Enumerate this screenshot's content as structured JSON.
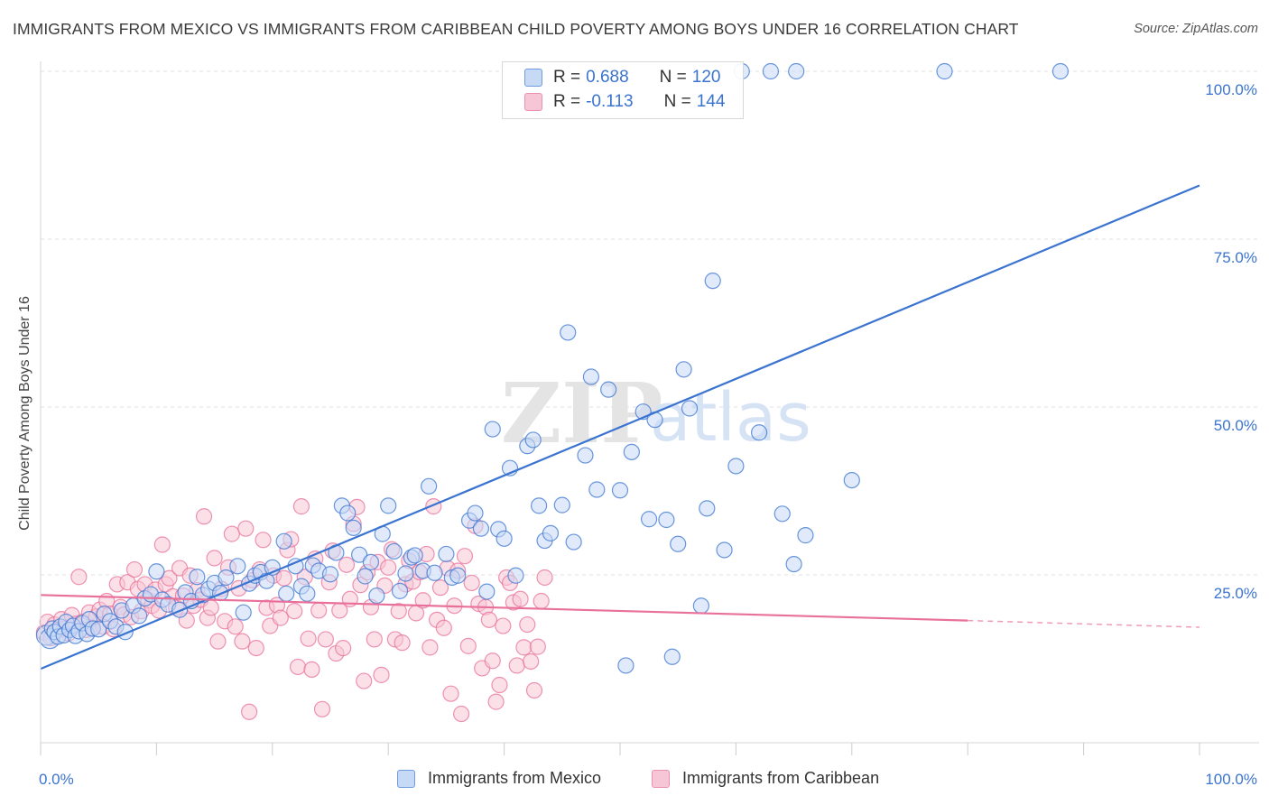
{
  "title": "IMMIGRANTS FROM MEXICO VS IMMIGRANTS FROM CARIBBEAN CHILD POVERTY AMONG BOYS UNDER 16 CORRELATION CHART",
  "source": "Source: ZipAtlas.com",
  "watermark": {
    "zip": "ZIP",
    "atlas": "atlas"
  },
  "colors": {
    "blue": "#3a74d0",
    "blue_fill": "#c6d9f5",
    "pink": "#e8709a",
    "pink_fill": "#f7c6d6",
    "grid": "#e0e0e0"
  },
  "legend_top": {
    "series": [
      {
        "r_label": "R =",
        "r_value": "0.688",
        "n_label": "N =",
        "n_value": "120"
      },
      {
        "r_label": "R =",
        "r_value": "-0.113",
        "n_label": "N =",
        "n_value": "144"
      }
    ]
  },
  "chart_data": {
    "type": "scatter",
    "title": "IMMIGRANTS FROM MEXICO VS IMMIGRANTS FROM CARIBBEAN CHILD POVERTY AMONG BOYS UNDER 16 CORRELATION CHART",
    "xlabel": "",
    "ylabel": "Child Poverty Among Boys Under 16",
    "xlim": [
      0,
      100
    ],
    "ylim": [
      0,
      100
    ],
    "x_tick_labels": [
      "0.0%",
      "100.0%"
    ],
    "y_tick_labels": [
      {
        "value": 25,
        "label": "25.0%"
      },
      {
        "value": 50,
        "label": "50.0%"
      },
      {
        "value": 75,
        "label": "75.0%"
      },
      {
        "value": 100,
        "label": "100.0%"
      }
    ],
    "grid": true,
    "legend_position": "bottom",
    "series": [
      {
        "name": "Immigrants from Mexico",
        "color": "#3a74d0",
        "trend": {
          "x": [
            0,
            100
          ],
          "y": [
            11,
            83
          ]
        },
        "points": [
          [
            0.5,
            16
          ],
          [
            0.8,
            15.5
          ],
          [
            1,
            17
          ],
          [
            1.2,
            16.5
          ],
          [
            1.5,
            15.8
          ],
          [
            1.7,
            17.3
          ],
          [
            2,
            16
          ],
          [
            2.2,
            18
          ],
          [
            2.5,
            16.8
          ],
          [
            2.8,
            17.4
          ],
          [
            3,
            15.9
          ],
          [
            3.3,
            16.6
          ],
          [
            3.6,
            17.8
          ],
          [
            4,
            16.2
          ],
          [
            4.2,
            18.4
          ],
          [
            4.5,
            17
          ],
          [
            5,
            16.9
          ],
          [
            5.5,
            19.2
          ],
          [
            6,
            18.1
          ],
          [
            6.5,
            17.3
          ],
          [
            7,
            19.7
          ],
          [
            7.3,
            16.5
          ],
          [
            8,
            20.4
          ],
          [
            8.5,
            18.9
          ],
          [
            9,
            21.5
          ],
          [
            9.5,
            22.1
          ],
          [
            10,
            25.5
          ],
          [
            10.5,
            21.3
          ],
          [
            11,
            20.6
          ],
          [
            12,
            19.8
          ],
          [
            12.5,
            22.4
          ],
          [
            13,
            21.1
          ],
          [
            13.5,
            24.7
          ],
          [
            14,
            22
          ],
          [
            14.5,
            22.9
          ],
          [
            15,
            23.8
          ],
          [
            15.5,
            22.3
          ],
          [
            16,
            24.6
          ],
          [
            17,
            26.3
          ],
          [
            17.5,
            19.4
          ],
          [
            18,
            23.7
          ],
          [
            18.5,
            24.9
          ],
          [
            19,
            25.4
          ],
          [
            19.5,
            24.1
          ],
          [
            20,
            26.1
          ],
          [
            21,
            30
          ],
          [
            21.2,
            22.2
          ],
          [
            22,
            26.3
          ],
          [
            22.5,
            23.3
          ],
          [
            23,
            22.2
          ],
          [
            23.5,
            26.4
          ],
          [
            24,
            25.6
          ],
          [
            25,
            25.1
          ],
          [
            25.5,
            28.3
          ],
          [
            26,
            35.3
          ],
          [
            26.5,
            34.2
          ],
          [
            27,
            32
          ],
          [
            27.5,
            28
          ],
          [
            28,
            24.8
          ],
          [
            28.5,
            26.9
          ],
          [
            29,
            21.9
          ],
          [
            29.5,
            31.1
          ],
          [
            30,
            35.3
          ],
          [
            30.5,
            28.5
          ],
          [
            31,
            22.6
          ],
          [
            31.5,
            25.2
          ],
          [
            32,
            27.6
          ],
          [
            32.3,
            27.9
          ],
          [
            33,
            25.6
          ],
          [
            33.5,
            38.2
          ],
          [
            34,
            25.3
          ],
          [
            35,
            28.1
          ],
          [
            35.5,
            24.6
          ],
          [
            36,
            24.9
          ],
          [
            37,
            33.1
          ],
          [
            37.5,
            34.2
          ],
          [
            38,
            31.9
          ],
          [
            38.5,
            22.5
          ],
          [
            39,
            46.7
          ],
          [
            39.5,
            31.8
          ],
          [
            40,
            30.4
          ],
          [
            40.5,
            40.9
          ],
          [
            41,
            24.9
          ],
          [
            42,
            44.2
          ],
          [
            42.5,
            45.1
          ],
          [
            43,
            35.3
          ],
          [
            43.5,
            30.1
          ],
          [
            44,
            31.2
          ],
          [
            45,
            35.4
          ],
          [
            45.5,
            61.1
          ],
          [
            46,
            29.9
          ],
          [
            47,
            42.8
          ],
          [
            47.5,
            54.5
          ],
          [
            48,
            37.7
          ],
          [
            49,
            52.6
          ],
          [
            50,
            37.6
          ],
          [
            50.5,
            11.5
          ],
          [
            51,
            43.3
          ],
          [
            52,
            49.3
          ],
          [
            52.5,
            33.3
          ],
          [
            53,
            48.1
          ],
          [
            54,
            33.2
          ],
          [
            54.5,
            12.8
          ],
          [
            55,
            29.6
          ],
          [
            55.5,
            55.6
          ],
          [
            56,
            49.8
          ],
          [
            57,
            20.4
          ],
          [
            57.5,
            34.9
          ],
          [
            58,
            68.8
          ],
          [
            59,
            28.7
          ],
          [
            60,
            41.2
          ],
          [
            60.5,
            100
          ],
          [
            62,
            46.2
          ],
          [
            63,
            100
          ],
          [
            64,
            34.1
          ],
          [
            65,
            26.6
          ],
          [
            65.2,
            100
          ],
          [
            66,
            30.9
          ],
          [
            70,
            39.1
          ],
          [
            78,
            100
          ],
          [
            88,
            100
          ]
        ],
        "point_size_note": "first two points rendered larger"
      },
      {
        "name": "Immigrants from Caribbean",
        "color": "#e8709a",
        "trend": {
          "x": [
            0,
            80,
            100
          ],
          "y": [
            22,
            18.2,
            17.2
          ],
          "dashed_from": 80
        },
        "points": [
          [
            0.3,
            16.4
          ],
          [
            0.6,
            18
          ],
          [
            0.9,
            15.6
          ],
          [
            1.2,
            17.6
          ],
          [
            1.5,
            16.9
          ],
          [
            1.8,
            18.4
          ],
          [
            2.1,
            17
          ],
          [
            2.4,
            16.3
          ],
          [
            2.7,
            19
          ],
          [
            3,
            17.7
          ],
          [
            3.3,
            24.7
          ],
          [
            3.6,
            18
          ],
          [
            3.9,
            16.8
          ],
          [
            4.2,
            19.4
          ],
          [
            4.5,
            17.1
          ],
          [
            4.8,
            18.8
          ],
          [
            5.1,
            19.8
          ],
          [
            5.4,
            17.3
          ],
          [
            5.7,
            21.1
          ],
          [
            6,
            19.2
          ],
          [
            6.3,
            16.9
          ],
          [
            6.6,
            23.6
          ],
          [
            6.9,
            20.2
          ],
          [
            7.2,
            19.1
          ],
          [
            7.5,
            23.9
          ],
          [
            7.8,
            18.7
          ],
          [
            8.1,
            25.8
          ],
          [
            8.4,
            22.9
          ],
          [
            8.7,
            19.6
          ],
          [
            9,
            23.6
          ],
          [
            9.3,
            21.2
          ],
          [
            9.6,
            20.4
          ],
          [
            9.9,
            22.8
          ],
          [
            10.2,
            19.7
          ],
          [
            10.5,
            29.5
          ],
          [
            10.8,
            23.6
          ],
          [
            11.1,
            24.5
          ],
          [
            11.4,
            21.8
          ],
          [
            11.7,
            20.1
          ],
          [
            12,
            26
          ],
          [
            12.3,
            21.9
          ],
          [
            12.6,
            18.2
          ],
          [
            12.9,
            24.9
          ],
          [
            13.2,
            20.4
          ],
          [
            13.5,
            22.7
          ],
          [
            13.8,
            21.3
          ],
          [
            14.1,
            33.7
          ],
          [
            14.4,
            18.6
          ],
          [
            14.7,
            20.1
          ],
          [
            15,
            27.5
          ],
          [
            15.3,
            15.1
          ],
          [
            15.6,
            22.9
          ],
          [
            15.9,
            18.1
          ],
          [
            16.2,
            26.1
          ],
          [
            16.5,
            31.1
          ],
          [
            16.8,
            17.3
          ],
          [
            17.1,
            23
          ],
          [
            17.4,
            15.1
          ],
          [
            17.7,
            31.9
          ],
          [
            18,
            4.6
          ],
          [
            18.3,
            24.2
          ],
          [
            18.6,
            14.1
          ],
          [
            18.9,
            25.8
          ],
          [
            19.2,
            30.2
          ],
          [
            19.5,
            20.1
          ],
          [
            19.8,
            17.4
          ],
          [
            20.1,
            24.9
          ],
          [
            20.4,
            20.5
          ],
          [
            20.7,
            18.6
          ],
          [
            21,
            24.5
          ],
          [
            21.3,
            28.7
          ],
          [
            21.6,
            30.3
          ],
          [
            21.9,
            19.6
          ],
          [
            22.2,
            11.3
          ],
          [
            22.5,
            35.2
          ],
          [
            22.8,
            24.7
          ],
          [
            23.1,
            15.5
          ],
          [
            23.4,
            10.9
          ],
          [
            23.7,
            27.4
          ],
          [
            24,
            19.7
          ],
          [
            24.3,
            5
          ],
          [
            24.6,
            15.4
          ],
          [
            24.9,
            23.9
          ],
          [
            25.2,
            28.6
          ],
          [
            25.5,
            13.3
          ],
          [
            25.8,
            19.7
          ],
          [
            26.1,
            14.1
          ],
          [
            26.4,
            26.5
          ],
          [
            26.7,
            21.4
          ],
          [
            27,
            32.6
          ],
          [
            27.3,
            35.1
          ],
          [
            27.6,
            23.5
          ],
          [
            27.9,
            9.2
          ],
          [
            28.2,
            25.4
          ],
          [
            28.5,
            20.2
          ],
          [
            28.8,
            15.4
          ],
          [
            29.1,
            26.9
          ],
          [
            29.4,
            10.1
          ],
          [
            29.7,
            23.4
          ],
          [
            30,
            26.1
          ],
          [
            30.3,
            28.8
          ],
          [
            30.6,
            15.4
          ],
          [
            30.9,
            19.6
          ],
          [
            31.2,
            14.9
          ],
          [
            31.5,
            23.6
          ],
          [
            31.8,
            27.1
          ],
          [
            32.1,
            24
          ],
          [
            32.4,
            19.3
          ],
          [
            32.7,
            25.4
          ],
          [
            33,
            21.2
          ],
          [
            33.3,
            28.1
          ],
          [
            33.6,
            14.2
          ],
          [
            33.9,
            35.2
          ],
          [
            34.2,
            18.3
          ],
          [
            34.5,
            23.1
          ],
          [
            34.8,
            17.1
          ],
          [
            35.1,
            26
          ],
          [
            35.4,
            7.3
          ],
          [
            35.7,
            20.4
          ],
          [
            36,
            25.6
          ],
          [
            36.3,
            4.3
          ],
          [
            36.6,
            27.8
          ],
          [
            36.9,
            14.4
          ],
          [
            37.2,
            23.8
          ],
          [
            37.5,
            32.3
          ],
          [
            37.8,
            20.7
          ],
          [
            38.1,
            11.1
          ],
          [
            38.4,
            20.2
          ],
          [
            38.7,
            18.3
          ],
          [
            39,
            12.2
          ],
          [
            39.3,
            6.1
          ],
          [
            39.6,
            8.6
          ],
          [
            39.9,
            17.4
          ],
          [
            40.2,
            24.6
          ],
          [
            40.5,
            23.8
          ],
          [
            40.8,
            20.9
          ],
          [
            41.1,
            11.5
          ],
          [
            41.4,
            21.4
          ],
          [
            41.7,
            14.2
          ],
          [
            42,
            17.6
          ],
          [
            42.3,
            12.1
          ],
          [
            42.6,
            7.8
          ],
          [
            42.9,
            14.3
          ],
          [
            43.2,
            21.1
          ],
          [
            43.5,
            24.6
          ]
        ]
      }
    ]
  },
  "legend_bottom": {
    "items": [
      "Immigrants from Mexico",
      "Immigrants from Caribbean"
    ]
  }
}
